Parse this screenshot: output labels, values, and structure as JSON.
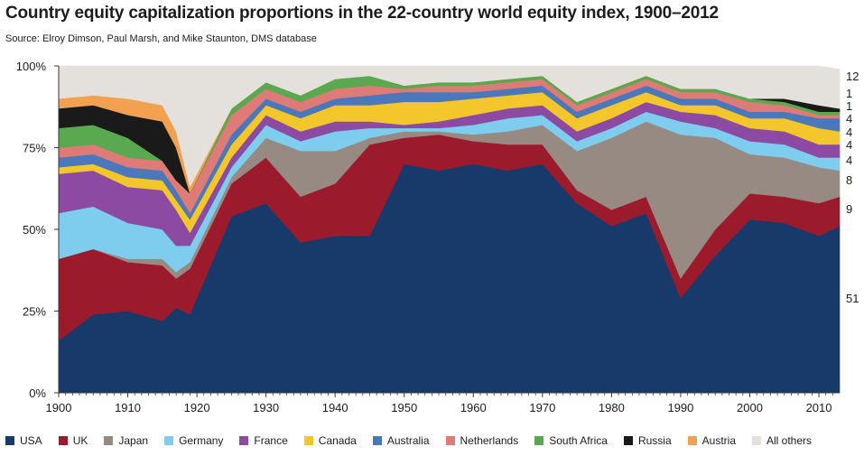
{
  "title": "Country equity capitalization proportions in the 22-country world equity index, 1900–2012",
  "subtitle": "Source: Elroy Dimson, Paul Marsh, and Mike Staunton, DMS database",
  "chart_data": {
    "type": "area",
    "stacked": true,
    "percent": true,
    "ylim": [
      0,
      100
    ],
    "xlim": [
      1900,
      2013
    ],
    "y_ticks": [
      "0%",
      "25%",
      "50%",
      "75%",
      "100%"
    ],
    "x_ticks": [
      "1900",
      "1910",
      "1920",
      "1930",
      "1940",
      "1950",
      "1960",
      "1970",
      "1980",
      "1990",
      "2000",
      "2010"
    ],
    "x": [
      1900,
      1905,
      1910,
      1915,
      1917,
      1919,
      1925,
      1930,
      1935,
      1940,
      1945,
      1950,
      1955,
      1960,
      1965,
      1970,
      1975,
      1980,
      1985,
      1990,
      1995,
      2000,
      2005,
      2010,
      2013
    ],
    "series": [
      {
        "name": "USA",
        "color": "#183a6b",
        "values": [
          16,
          24,
          25,
          22,
          26,
          24,
          54,
          58,
          46,
          48,
          48,
          70,
          68,
          70,
          68,
          70,
          58,
          51,
          55,
          29,
          42,
          53,
          52,
          48,
          51
        ]
      },
      {
        "name": "UK",
        "color": "#9b1b2c",
        "values": [
          25,
          20,
          15,
          17,
          9,
          14,
          10,
          14,
          14,
          16,
          28,
          8,
          11,
          7,
          8,
          6,
          4,
          5,
          5,
          6,
          8,
          8,
          8,
          10,
          9
        ]
      },
      {
        "name": "Japan",
        "color": "#968a82",
        "values": [
          0,
          0,
          1,
          2,
          2,
          2,
          2,
          6,
          14,
          10,
          2,
          2,
          1,
          2,
          4,
          6,
          12,
          22,
          23,
          44,
          28,
          12,
          12,
          11,
          8
        ]
      },
      {
        "name": "Germany",
        "color": "#7fcdee",
        "values": [
          14,
          13,
          11,
          9,
          8,
          5,
          3,
          4,
          3,
          6,
          3,
          1,
          1,
          3,
          4,
          3,
          3,
          3,
          3,
          4,
          3,
          4,
          4,
          3,
          4
        ]
      },
      {
        "name": "France",
        "color": "#8c4aa3",
        "values": [
          12,
          11,
          11,
          12,
          11,
          4,
          3,
          3,
          3,
          3,
          2,
          1,
          2,
          3,
          3,
          3,
          3,
          3,
          3,
          3,
          4,
          4,
          4,
          4,
          4
        ]
      },
      {
        "name": "Canada",
        "color": "#f3c62b",
        "values": [
          2,
          2,
          3,
          3,
          3,
          4,
          4,
          3,
          4,
          5,
          5,
          7,
          6,
          5,
          4,
          4,
          4,
          4,
          3,
          2,
          3,
          3,
          4,
          5,
          4
        ]
      },
      {
        "name": "Australia",
        "color": "#4a78ba",
        "values": [
          3,
          3,
          3,
          3,
          3,
          2,
          3,
          2,
          2,
          2,
          3,
          3,
          3,
          2,
          2,
          2,
          2,
          2,
          2,
          2,
          2,
          2,
          2,
          3,
          4
        ]
      },
      {
        "name": "Netherlands",
        "color": "#df7b76",
        "values": [
          3,
          3,
          3,
          3,
          3,
          6,
          6,
          3,
          3,
          3,
          3,
          1,
          2,
          2,
          2,
          2,
          2,
          2,
          2,
          2,
          2,
          3,
          2,
          1,
          1
        ]
      },
      {
        "name": "South Africa",
        "color": "#5aa84f",
        "values": [
          6,
          6,
          6,
          0,
          0,
          0,
          2,
          2,
          2,
          3,
          3,
          1,
          1,
          1,
          1,
          1,
          1,
          1,
          1,
          1,
          1,
          1,
          1,
          1,
          1
        ]
      },
      {
        "name": "Russia",
        "color": "#1a1a1a",
        "values": [
          6,
          6,
          7,
          12,
          10,
          0,
          0,
          0,
          0,
          0,
          0,
          0,
          0,
          0,
          0,
          0,
          0,
          0,
          0,
          0,
          0,
          0,
          1,
          2,
          1
        ]
      },
      {
        "name": "Austria",
        "color": "#f1a150",
        "values": [
          3,
          3,
          5,
          5,
          5,
          2,
          0,
          0,
          0,
          0,
          0,
          0,
          0,
          0,
          0,
          0,
          0,
          0,
          0,
          0,
          0,
          0,
          0,
          0,
          0
        ]
      },
      {
        "name": "All others",
        "color": "#e4e1dc",
        "values": [
          10,
          9,
          10,
          12,
          20,
          37,
          13,
          5,
          9,
          4,
          3,
          6,
          5,
          5,
          4,
          3,
          11,
          7,
          3,
          7,
          7,
          10,
          10,
          12,
          12
        ]
      }
    ],
    "end_labels": [
      "51",
      "9",
      "8",
      "4",
      "4",
      "4",
      "4",
      "1",
      "1",
      "12"
    ]
  }
}
